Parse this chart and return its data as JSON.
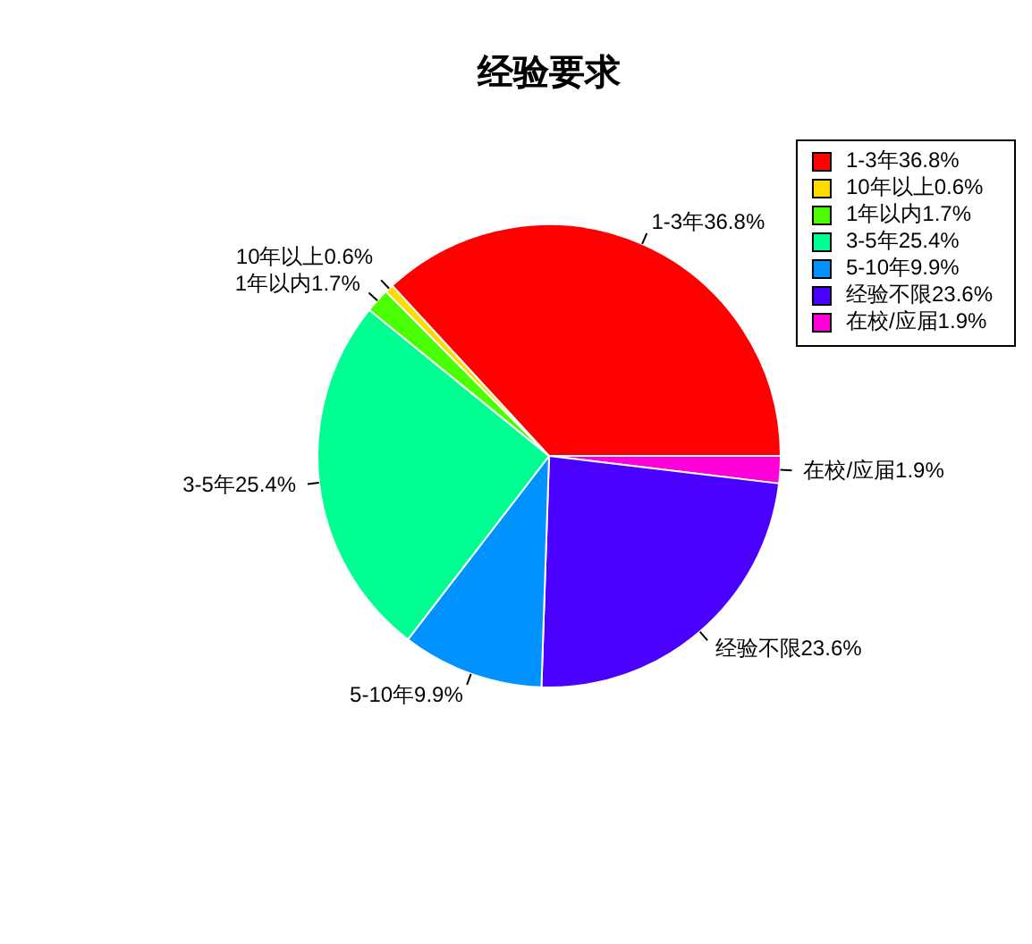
{
  "chart_data": {
    "type": "pie",
    "title": "经验要求",
    "categories": [
      "1-3年36.8%",
      "10年以上0.6%",
      "1年以内1.7%",
      "3-5年25.4%",
      "5-10年9.9%",
      "经验不限23.6%",
      "在校/应届1.9%"
    ],
    "values": [
      36.8,
      0.6,
      1.7,
      25.4,
      9.9,
      23.6,
      1.9
    ],
    "colors": [
      "#ff0000",
      "#ffdb00",
      "#49ff00",
      "#00ff92",
      "#0092ff",
      "#4900ff",
      "#ff00db"
    ],
    "legend": "top right"
  }
}
